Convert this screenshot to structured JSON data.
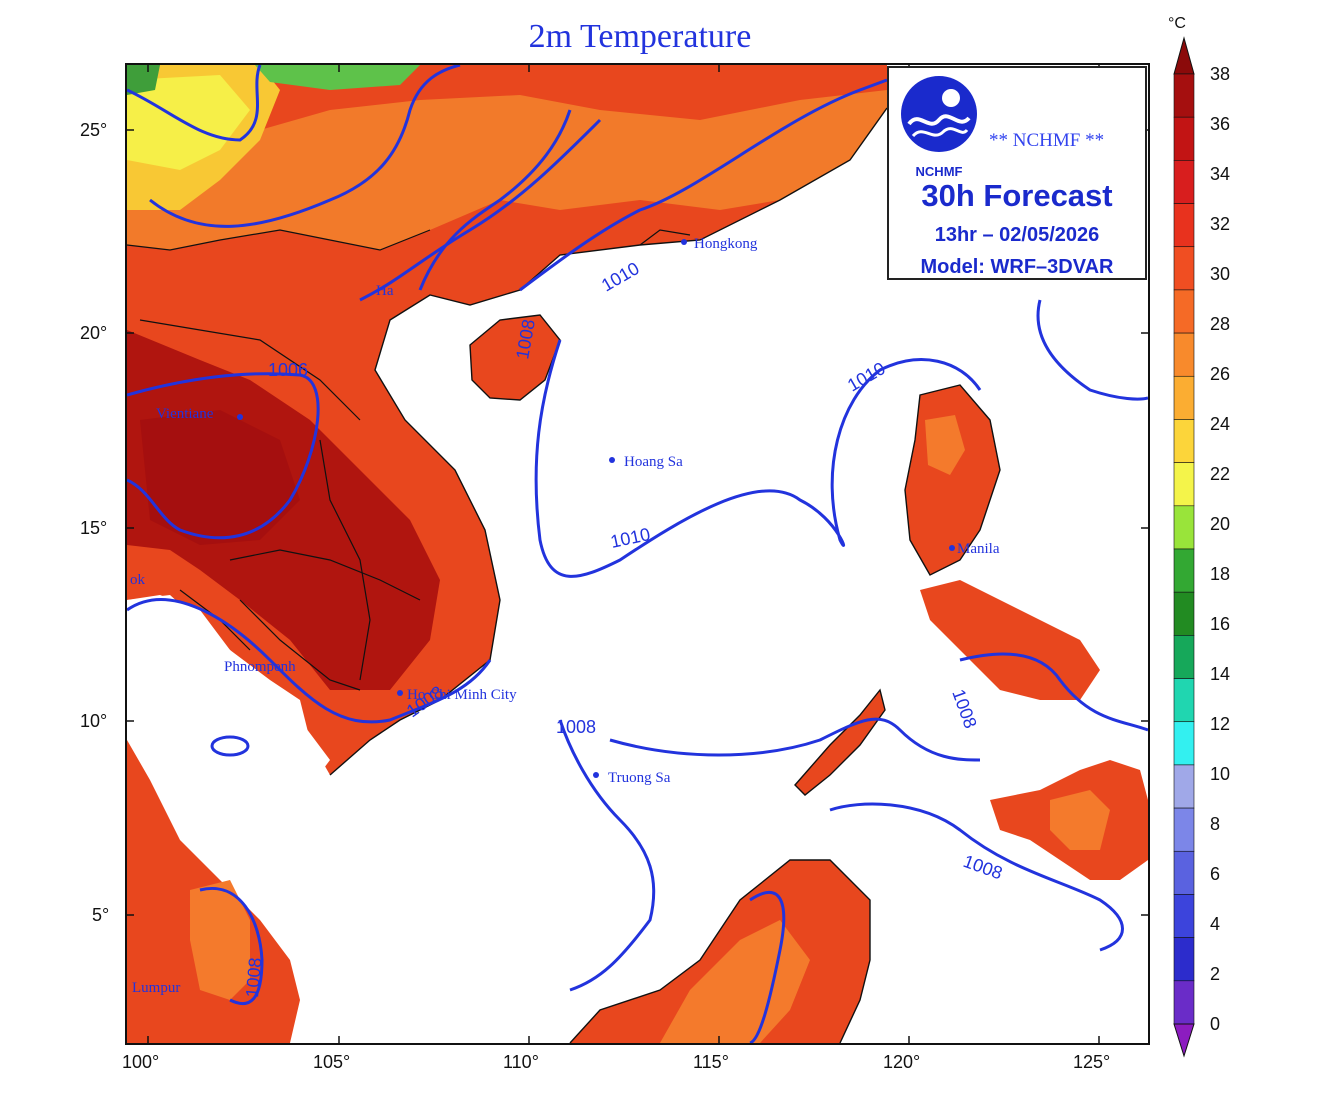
{
  "title": "2m Temperature",
  "info_box": {
    "org": "** NCHMF **",
    "logo_text": "NCHMF",
    "forecast": "30h Forecast",
    "date": "13hr – 02/05/2026",
    "model": "Model: WRF–3DVAR"
  },
  "axes": {
    "x_ticks": [
      "100°",
      "105°",
      "110°",
      "115°",
      "120°",
      "125°"
    ],
    "y_ticks": [
      "25°",
      "20°",
      "15°",
      "10°",
      "5°"
    ]
  },
  "cities": {
    "hongkong": "Hongkong",
    "hanoi": "Ha",
    "vientiane": "Vientiane",
    "hoangsa": "Hoang Sa",
    "manila": "Manila",
    "bangkok": "ok",
    "phnompenh": "Phnompenh",
    "hcm": "Ho Chi Minh City",
    "truongsa": "Truong Sa",
    "kl": "Lumpur"
  },
  "isobars": {
    "l1010a": "1010",
    "l1010b": "1010",
    "l1010c": "1010",
    "l1008a": "1008",
    "l1008b": "1008",
    "l1008c": "1008",
    "l1008d": "1008",
    "l1008e": "1008",
    "l1008f": "1008",
    "l1006": "1006"
  },
  "colorbar": {
    "unit": "°C",
    "labels": [
      "38",
      "36",
      "34",
      "32",
      "30",
      "28",
      "26",
      "24",
      "22",
      "20",
      "18",
      "16",
      "14",
      "12",
      "10",
      "8",
      "6",
      "4",
      "2",
      "0"
    ],
    "colors": [
      "#8b0a0a",
      "#a50f0f",
      "#c21414",
      "#d81e1e",
      "#e8321e",
      "#f04e22",
      "#f56a26",
      "#f88a2c",
      "#fbad32",
      "#fcd53a",
      "#f4f44a",
      "#99e43a",
      "#33a833",
      "#228b22",
      "#16a85a",
      "#20d6b0",
      "#33f0f0",
      "#a0a8e8",
      "#7c86e8",
      "#5a62e0",
      "#3c44dc",
      "#2c2ccc",
      "#6a2cc8",
      "#8c1cc0"
    ]
  }
}
